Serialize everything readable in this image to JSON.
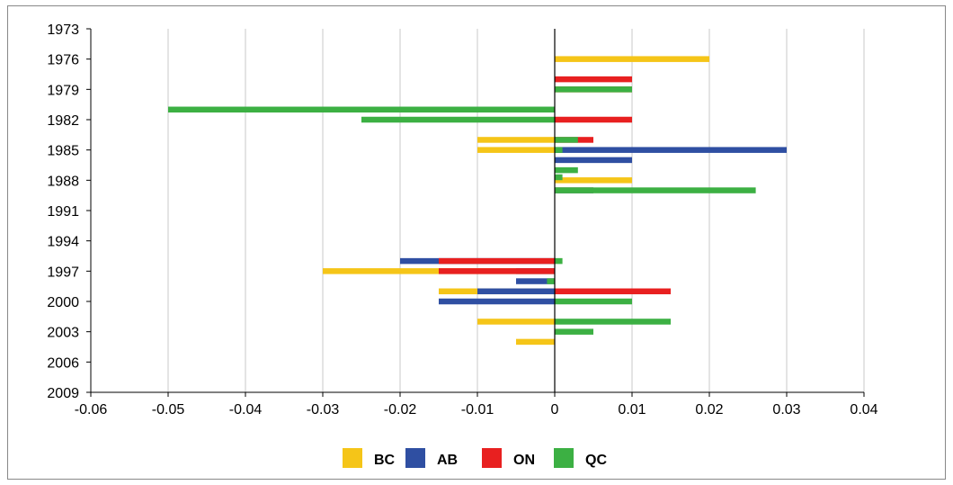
{
  "chart_data": {
    "type": "bar",
    "orientation": "horizontal",
    "xlim": [
      -0.06,
      0.04
    ],
    "x_ticks": [
      "-0.06",
      "-0.05",
      "-0.04",
      "-0.03",
      "-0.02",
      "-0.01",
      "0",
      "0.01",
      "0.02",
      "0.03",
      "0.04"
    ],
    "y_ticks": [
      "1973",
      "1976",
      "1979",
      "1982",
      "1985",
      "1988",
      "1991",
      "1994",
      "1997",
      "2000",
      "2003",
      "2006",
      "2009"
    ],
    "year_range": [
      1973,
      2009
    ],
    "grid": "vertical",
    "legend_position": "bottom",
    "series": [
      {
        "name": "BC",
        "color": "#f5c518",
        "points": [
          {
            "year": 1976,
            "value": 0.02
          },
          {
            "year": 1979,
            "value": 0.01
          },
          {
            "year": 1984,
            "value": -0.01
          },
          {
            "year": 1985,
            "value": -0.01
          },
          {
            "year": 1988,
            "value": 0.01
          },
          {
            "year": 1989,
            "value": 0.005
          },
          {
            "year": 1997,
            "value": -0.03
          },
          {
            "year": 1999,
            "value": -0.015
          },
          {
            "year": 2002,
            "value": -0.01
          },
          {
            "year": 2004,
            "value": -0.005
          }
        ]
      },
      {
        "name": "AB",
        "color": "#2f4fa2",
        "points": [
          {
            "year": 1985,
            "value": 0.03
          },
          {
            "year": 1986,
            "value": 0.01
          },
          {
            "year": 1989,
            "value": 0.005
          },
          {
            "year": 1996,
            "value": -0.02
          },
          {
            "year": 1997,
            "value": -0.005
          },
          {
            "year": 1998,
            "value": -0.005
          },
          {
            "year": 1999,
            "value": -0.01
          },
          {
            "year": 2000,
            "value": -0.015
          }
        ]
      },
      {
        "name": "ON",
        "color": "#e82020",
        "points": [
          {
            "year": 1978,
            "value": 0.01
          },
          {
            "year": 1979,
            "value": 0.01
          },
          {
            "year": 1982,
            "value": 0.01
          },
          {
            "year": 1984,
            "value": 0.005
          },
          {
            "year": 1996,
            "value": -0.015
          },
          {
            "year": 1997,
            "value": -0.015
          },
          {
            "year": 1999,
            "value": 0.015
          }
        ]
      },
      {
        "name": "QC",
        "color": "#3cb043",
        "points": [
          {
            "year": 1979,
            "value": 0.01
          },
          {
            "year": 1981,
            "value": -0.05
          },
          {
            "year": 1982,
            "value": -0.025
          },
          {
            "year": 1984,
            "value": 0.003
          },
          {
            "year": 1985,
            "value": 0.001
          },
          {
            "year": 1987,
            "value": 0.003
          },
          {
            "year": 1987.7,
            "value": 0.001
          },
          {
            "year": 1989,
            "value": 0.026
          },
          {
            "year": 1996,
            "value": 0.001
          },
          {
            "year": 1998,
            "value": -0.001
          },
          {
            "year": 2000,
            "value": 0.01
          },
          {
            "year": 2002,
            "value": 0.015
          },
          {
            "year": 2003,
            "value": 0.005
          }
        ]
      }
    ]
  }
}
